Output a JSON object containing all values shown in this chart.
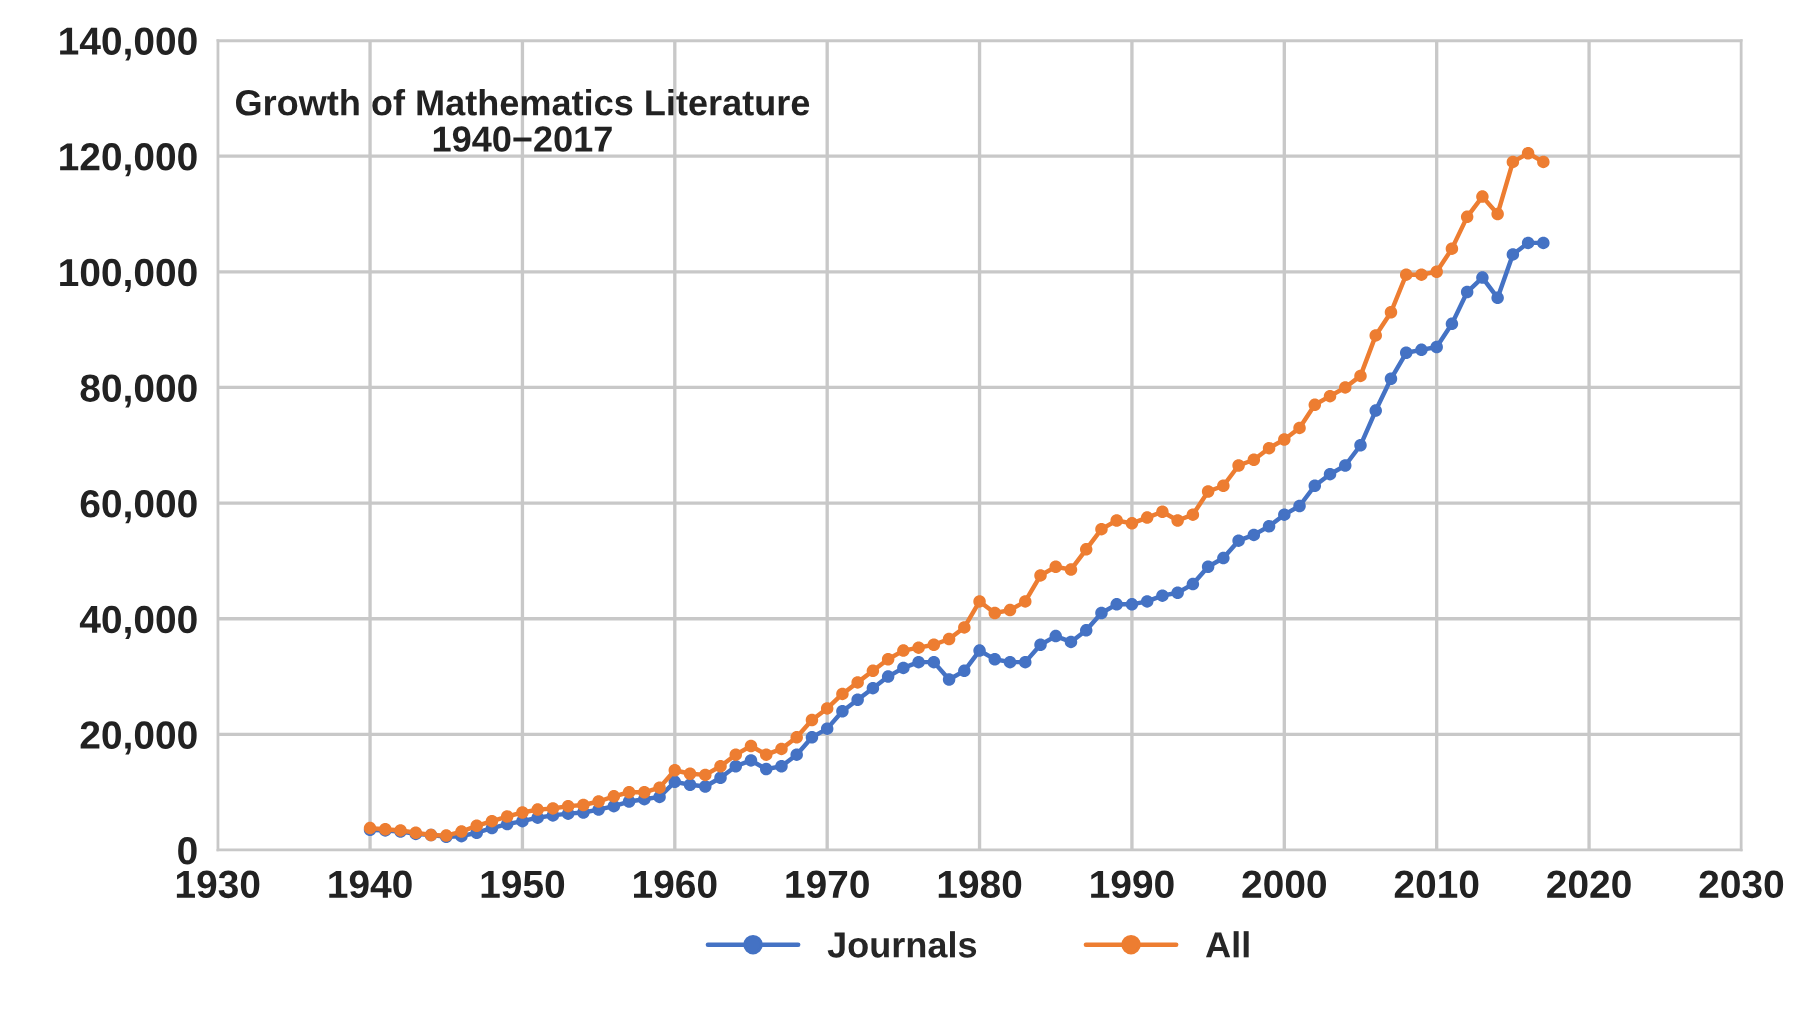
{
  "chart_data": {
    "type": "line",
    "title": "Growth of Mathematics Literature\n1940−2017",
    "x": [
      1940,
      1941,
      1942,
      1943,
      1944,
      1945,
      1946,
      1947,
      1948,
      1949,
      1950,
      1951,
      1952,
      1953,
      1954,
      1955,
      1956,
      1957,
      1958,
      1959,
      1960,
      1961,
      1962,
      1963,
      1964,
      1965,
      1966,
      1967,
      1968,
      1969,
      1970,
      1971,
      1972,
      1973,
      1974,
      1975,
      1976,
      1977,
      1978,
      1979,
      1980,
      1981,
      1982,
      1983,
      1984,
      1985,
      1986,
      1987,
      1988,
      1989,
      1990,
      1991,
      1992,
      1993,
      1994,
      1995,
      1996,
      1997,
      1998,
      1999,
      2000,
      2001,
      2002,
      2003,
      2004,
      2005,
      2006,
      2007,
      2008,
      2009,
      2010,
      2011,
      2012,
      2013,
      2014,
      2015,
      2016,
      2017
    ],
    "series": [
      {
        "name": "Journals",
        "color": "#4472c4",
        "values": [
          3500,
          3400,
          3200,
          2800,
          2600,
          2300,
          2400,
          3000,
          3800,
          4500,
          5000,
          5600,
          6000,
          6300,
          6500,
          7000,
          7600,
          8400,
          8800,
          9200,
          11800,
          11300,
          11000,
          12500,
          14500,
          15500,
          14000,
          14500,
          16500,
          19500,
          21000,
          24000,
          26000,
          28000,
          30000,
          31500,
          32500,
          32500,
          29500,
          31000,
          34500,
          33000,
          32500,
          32500,
          35500,
          37000,
          36000,
          38000,
          41000,
          42500,
          42500,
          43000,
          44000,
          44500,
          46000,
          49000,
          50500,
          53500,
          54500,
          56000,
          58000,
          59500,
          63000,
          65000,
          66500,
          70000,
          76000,
          81500,
          86000,
          86500,
          87000,
          91000,
          96500,
          99000,
          95500,
          103000,
          105000,
          105000
        ]
      },
      {
        "name": "All",
        "color": "#ed7d31",
        "values": [
          3800,
          3600,
          3400,
          3000,
          2600,
          2500,
          3200,
          4200,
          5000,
          5800,
          6500,
          7000,
          7200,
          7600,
          7800,
          8400,
          9300,
          10000,
          10000,
          10800,
          13800,
          13200,
          13000,
          14500,
          16500,
          18000,
          16500,
          17500,
          19500,
          22500,
          24500,
          27000,
          29000,
          31000,
          33000,
          34500,
          35000,
          35500,
          36500,
          38500,
          43000,
          41000,
          41500,
          43000,
          47500,
          49000,
          48500,
          52000,
          55500,
          57000,
          56500,
          57500,
          58500,
          57000,
          58000,
          62000,
          63000,
          66500,
          67500,
          69500,
          71000,
          73000,
          77000,
          78500,
          80000,
          82000,
          89000,
          93000,
          99500,
          99500,
          100000,
          104000,
          109500,
          113000,
          110000,
          119000,
          120500,
          119000
        ]
      }
    ],
    "xlim": [
      1930,
      2030
    ],
    "xticks": [
      1930,
      1940,
      1950,
      1960,
      1970,
      1980,
      1990,
      2000,
      2010,
      2020,
      2030
    ],
    "ylim": [
      0,
      140000
    ],
    "yticks": [
      {
        "value": 0,
        "label": "0"
      },
      {
        "value": 20000,
        "label": "20,000"
      },
      {
        "value": 40000,
        "label": "40,000"
      },
      {
        "value": 60000,
        "label": "60,000"
      },
      {
        "value": 80000,
        "label": "80,000"
      },
      {
        "value": 100000,
        "label": "100,000"
      },
      {
        "value": 120000,
        "label": "120,000"
      },
      {
        "value": 140000,
        "label": "140,000"
      }
    ],
    "grid": true,
    "legend": "bottom",
    "marker": "circle",
    "line_style": "solid"
  }
}
